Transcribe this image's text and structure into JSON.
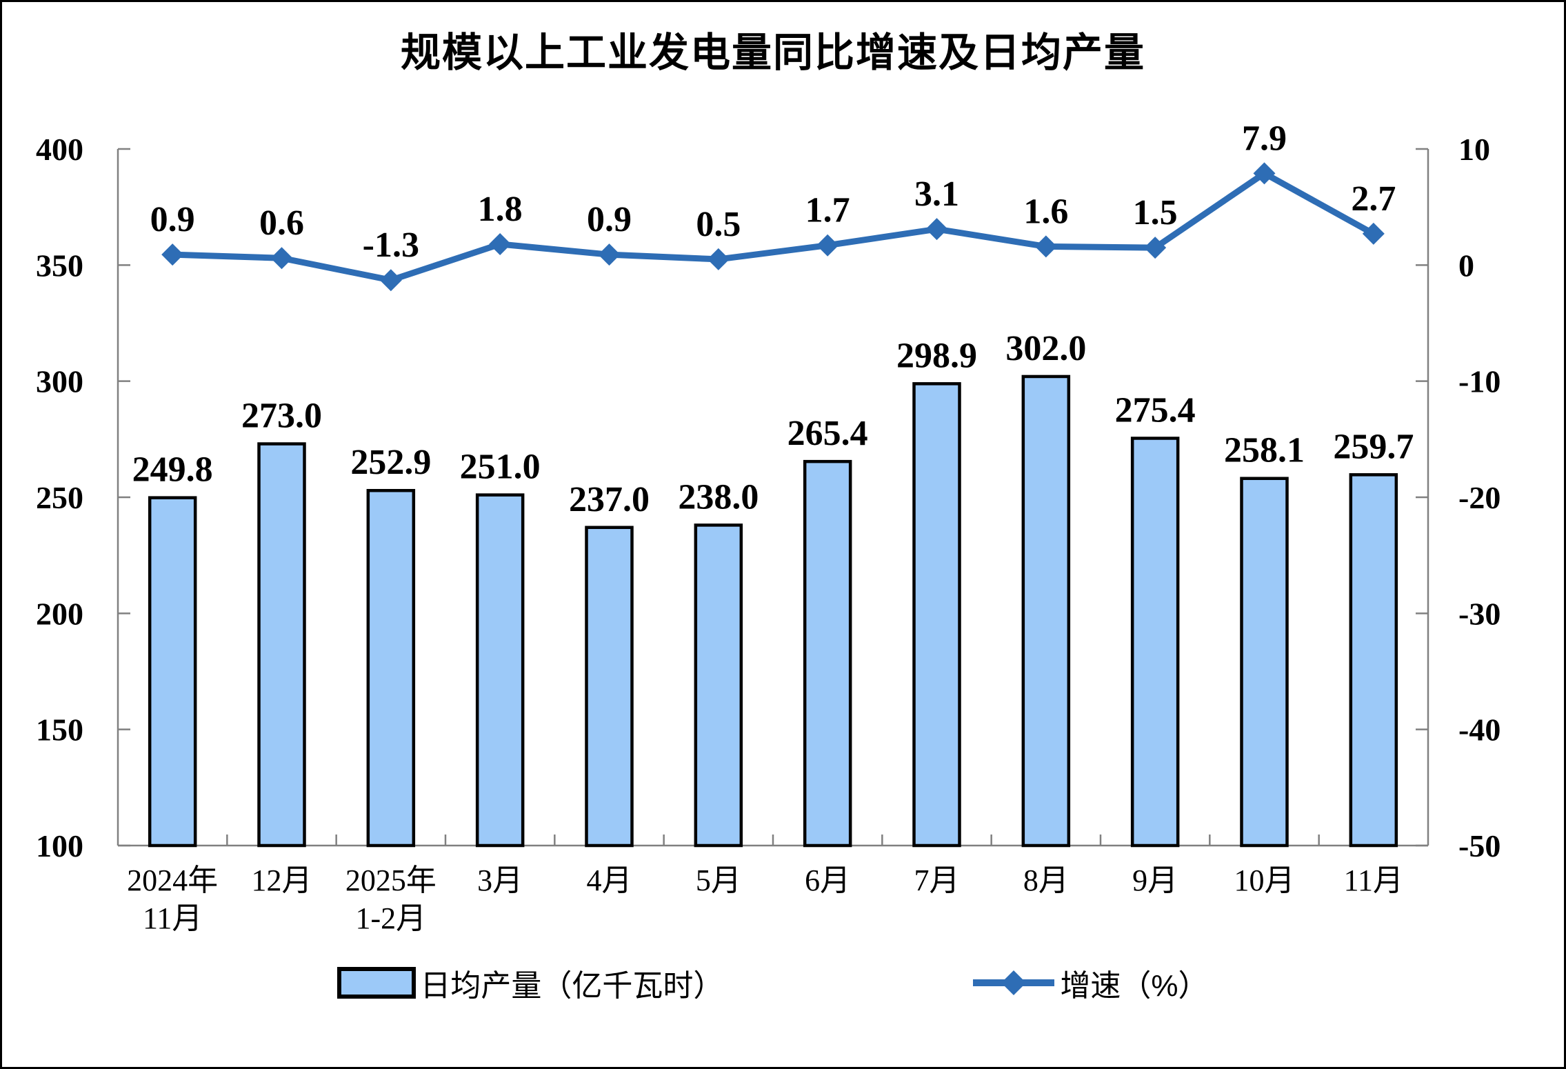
{
  "title": "规模以上工业发电量同比增速及日均产量",
  "legend": {
    "bar_label": "日均产量（亿千瓦时）",
    "line_label": "增速（%）"
  },
  "colors": {
    "bar_fill": "#9CC9F8",
    "bar_border": "#000000",
    "line": "#2E6DB5",
    "axis": "#808080",
    "text": "#000000",
    "background": "#FFFFFF",
    "frame": "#000000"
  },
  "chart_data": {
    "type": "combo bar+line, dual axis",
    "title": "规模以上工业发电量同比增速及日均产量",
    "grid": false,
    "legend_position": "bottom",
    "categories": [
      "2024年\n11月",
      "12月",
      "2025年\n1-2月",
      "3月",
      "4月",
      "5月",
      "6月",
      "7月",
      "8月",
      "9月",
      "10月",
      "11月"
    ],
    "series": [
      {
        "name": "日均产量（亿千瓦时）",
        "type": "bar",
        "axis": "left",
        "values": [
          249.8,
          273.0,
          252.9,
          251.0,
          237.0,
          238.0,
          265.4,
          298.9,
          302.0,
          275.4,
          258.1,
          259.7
        ],
        "labels": [
          "249.8",
          "273.0",
          "252.9",
          "251.0",
          "237.0",
          "238.0",
          "265.4",
          "298.9",
          "302.0",
          "275.4",
          "258.1",
          "259.7"
        ]
      },
      {
        "name": "增速（%）",
        "type": "line",
        "axis": "right",
        "values": [
          0.9,
          0.6,
          -1.3,
          1.8,
          0.9,
          0.5,
          1.7,
          3.1,
          1.6,
          1.5,
          7.9,
          2.7
        ],
        "labels": [
          "0.9",
          "0.6",
          "-1.3",
          "1.8",
          "0.9",
          "0.5",
          "1.7",
          "3.1",
          "1.6",
          "1.5",
          "7.9",
          "2.7"
        ]
      }
    ],
    "left_axis": {
      "min": 100,
      "max": 400,
      "step": 50,
      "ticks": [
        "100",
        "150",
        "200",
        "250",
        "300",
        "350",
        "400"
      ]
    },
    "right_axis": {
      "min": -50,
      "max": 10,
      "step": 10,
      "ticks": [
        "-50",
        "-40",
        "-30",
        "-20",
        "-10",
        "0",
        "10"
      ]
    }
  }
}
